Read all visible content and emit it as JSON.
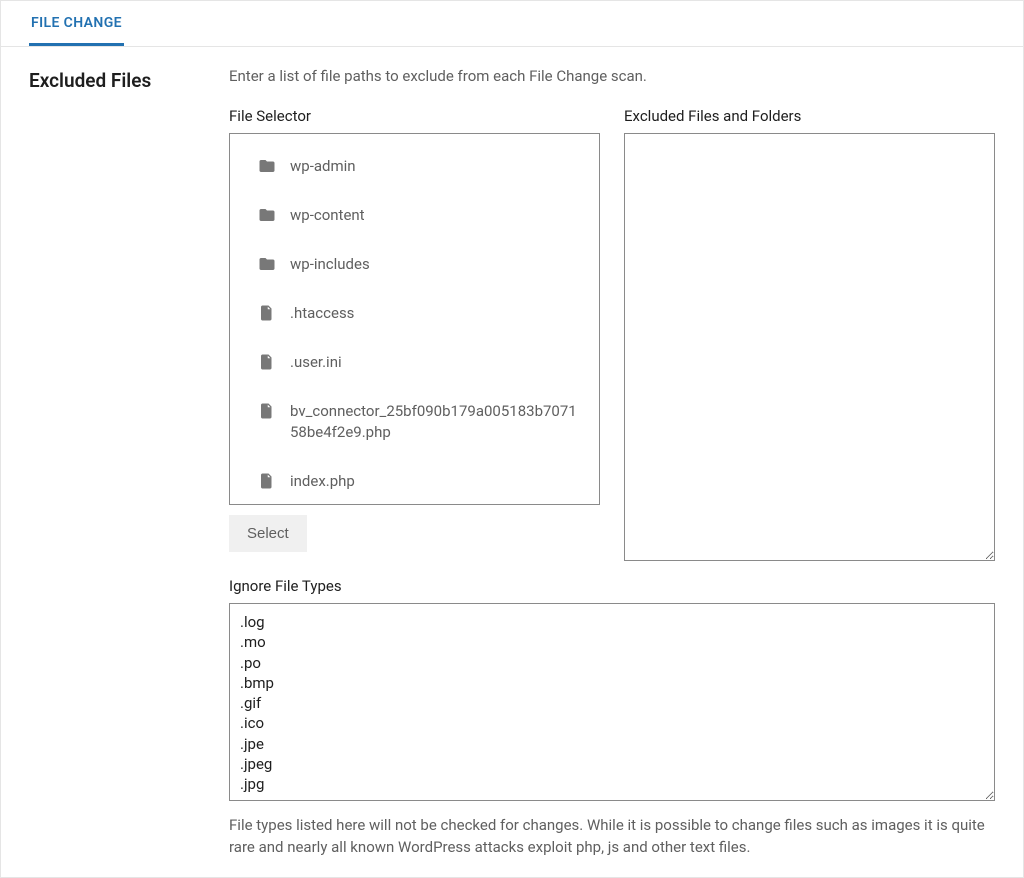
{
  "tab": {
    "label": "FILE CHANGE"
  },
  "section": {
    "title": "Excluded Files",
    "description": "Enter a list of file paths to exclude from each File Change scan."
  },
  "file_selector": {
    "label": "File Selector",
    "select_button": "Select",
    "items": [
      {
        "type": "folder",
        "name": "wp-admin"
      },
      {
        "type": "folder",
        "name": "wp-content"
      },
      {
        "type": "folder",
        "name": "wp-includes"
      },
      {
        "type": "file",
        "name": ".htaccess"
      },
      {
        "type": "file",
        "name": ".user.ini"
      },
      {
        "type": "file",
        "name": "bv_connector_25bf090b179a005183b707158be4f2e9.php"
      },
      {
        "type": "file",
        "name": "index.php"
      }
    ]
  },
  "excluded": {
    "label": "Excluded Files and Folders",
    "value": ""
  },
  "ignore": {
    "label": "Ignore File Types",
    "value": ".log\n.mo\n.po\n.bmp\n.gif\n.ico\n.jpe\n.jpeg\n.jpg\n.png",
    "help": "File types listed here will not be checked for changes. While it is possible to change files such as images it is quite rare and nearly all known WordPress attacks exploit php, js and other text files."
  },
  "colors": {
    "accent": "#2271b1",
    "text": "#1e1e1e",
    "muted": "#5f5f5f",
    "border": "#8a8a8a",
    "icon": "#787878",
    "panel_border": "#e5e5e5",
    "button_bg": "#f0f0f0"
  }
}
